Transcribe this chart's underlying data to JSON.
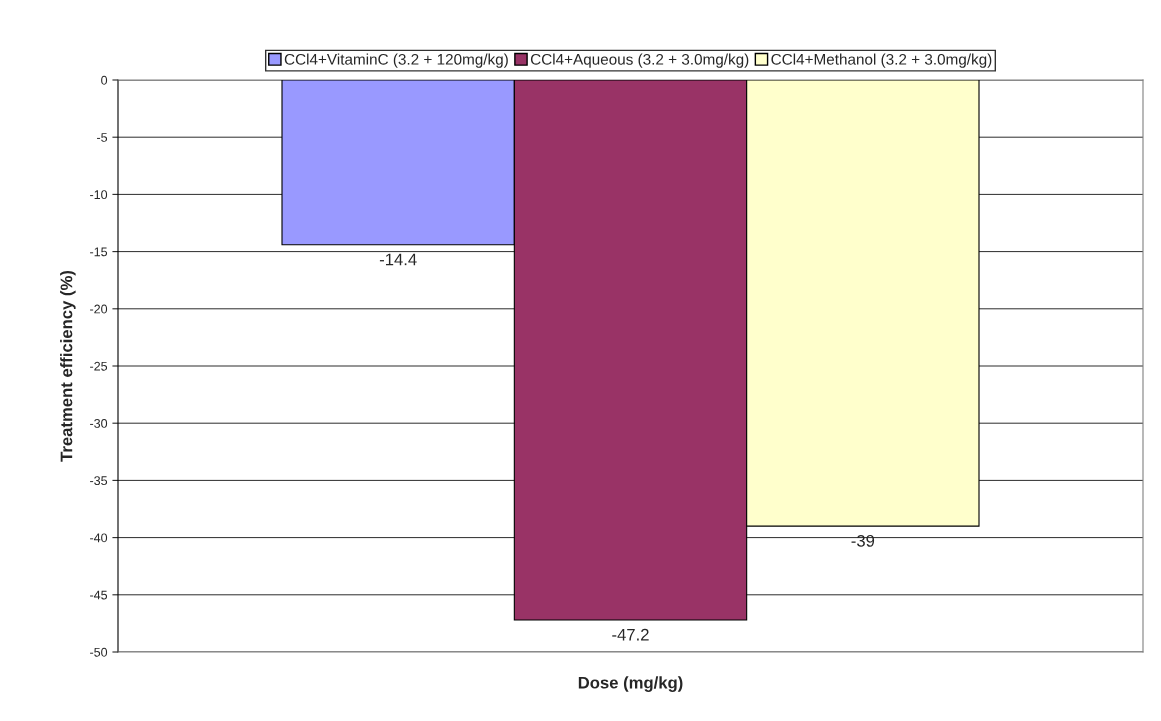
{
  "chart_data": {
    "type": "bar",
    "xlabel": "Dose (mg/kg)",
    "ylabel": "Treatment efficiency (%)",
    "categories": [
      null
    ],
    "series": [
      {
        "name": "CCl4+VitaminC (3.2 + 120mg/kg)",
        "color": "#9999ff",
        "values": [
          -14.4
        ]
      },
      {
        "name": "CCl4+Aqueous (3.2 + 3.0mg/kg)",
        "color": "#993366",
        "values": [
          -47.2
        ]
      },
      {
        "name": "CCl4+Methanol (3.2 + 3.0mg/kg)",
        "color": "#ffffcc",
        "values": [
          -39
        ]
      }
    ],
    "ylim": [
      -50,
      0
    ],
    "yticks": [
      0,
      -5,
      -10,
      -15,
      -20,
      -25,
      -30,
      -35,
      -40,
      -45,
      -50
    ],
    "grid": "y",
    "legend": "top",
    "data_labels": true
  }
}
